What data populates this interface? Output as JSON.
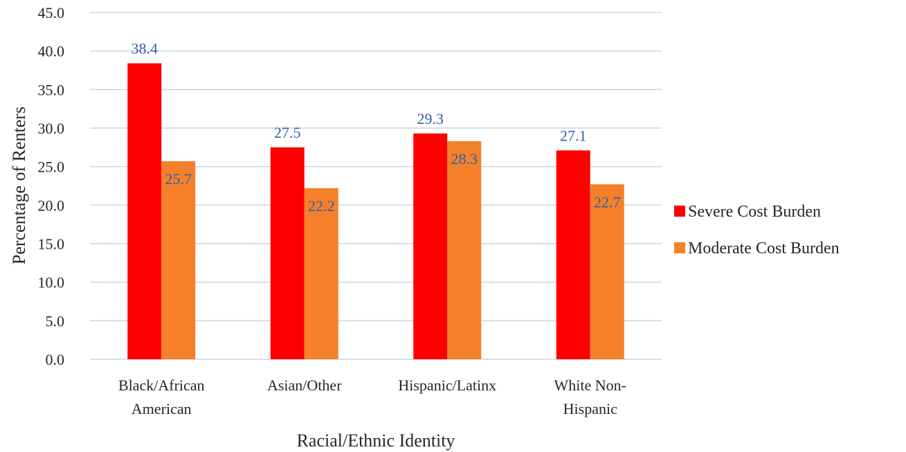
{
  "chart_data": {
    "type": "bar",
    "title": "",
    "xlabel": "Racial/Ethnic Identity",
    "ylabel": "Percentage of Renters",
    "ylim": [
      0,
      45
    ],
    "y_ticks": [
      "0.0",
      "5.0",
      "10.0",
      "15.0",
      "20.0",
      "25.0",
      "30.0",
      "35.0",
      "40.0",
      "45.0"
    ],
    "categories": [
      [
        "Black/African",
        "American"
      ],
      [
        "Asian/Other"
      ],
      [
        "Hispanic/Latinx"
      ],
      [
        "White Non-",
        "Hispanic"
      ]
    ],
    "series": [
      {
        "name": "Severe Cost Burden",
        "color": "#ff0000",
        "values": [
          38.4,
          27.5,
          29.3,
          27.1
        ],
        "labels": [
          "38.4",
          "27.5",
          "29.3",
          "27.1"
        ]
      },
      {
        "name": "Moderate Cost Burden",
        "color": "#f4812a",
        "values": [
          25.7,
          22.2,
          28.3,
          22.7
        ],
        "labels": [
          "25.7",
          "22.2",
          "28.3",
          "22.7"
        ]
      }
    ],
    "grid": true,
    "legend_position": "right",
    "colors": {
      "gridline": "#c5d5ea",
      "data_label": "#2e5fa8",
      "text": "#262626"
    }
  }
}
